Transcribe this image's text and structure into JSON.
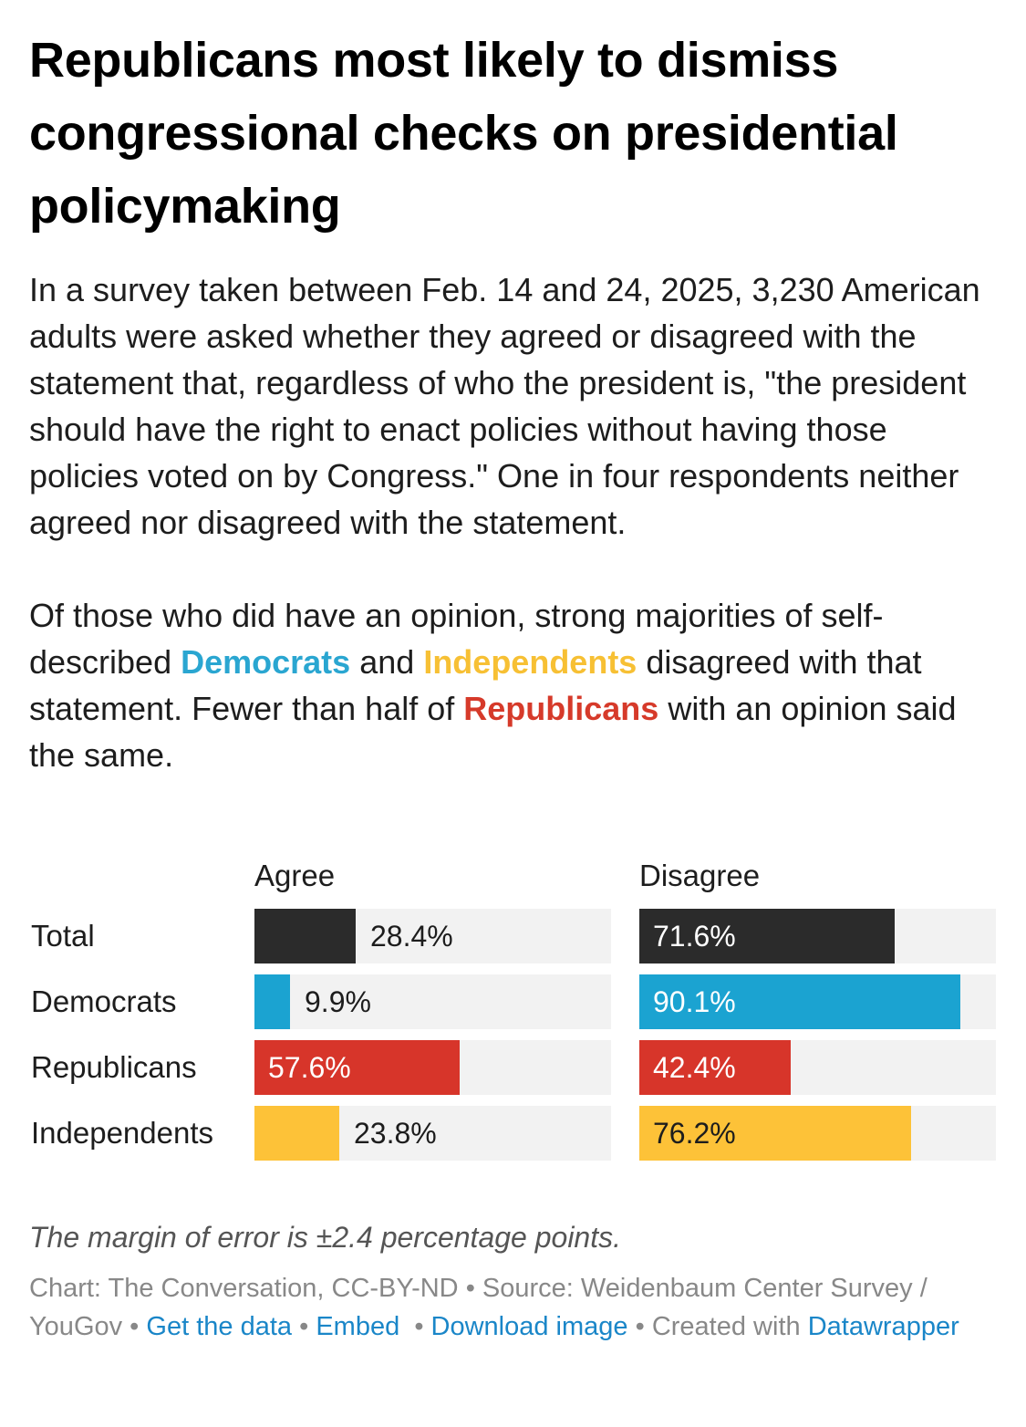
{
  "header": {
    "title": "Republicans most likely to dismiss congressional checks on presidential policymaking"
  },
  "description": {
    "p1": "In a survey taken between Feb. 14 and 24, 2025, 3,230 American adults were asked whether they agreed or disagreed with the statement that, regardless of who the president is, \"the president should have the right to enact policies without having those policies voted on by Congress.\" One in four respondents neither agreed nor disagreed with the statement.",
    "p2_a": "Of those who did have an opinion, strong majorities of self-described",
    "dem": "Democrats",
    "p2_b": "and",
    "ind": "Independents",
    "p2_c": "disagreed with that statement. Fewer than half of",
    "rep": "Republicans",
    "p2_d": "with an opinion said the same."
  },
  "colors": {
    "total": "#2b2b2b",
    "democrats": "#1ba3d1",
    "republicans": "#d7352a",
    "independents": "#fdc238",
    "track": "#f2f2f2"
  },
  "chart_data": {
    "type": "bar",
    "orientation": "horizontal",
    "layout": "split-bars",
    "columns": [
      "Agree",
      "Disagree"
    ],
    "categories": [
      "Total",
      "Democrats",
      "Republicans",
      "Independents"
    ],
    "series": [
      {
        "name": "Agree",
        "values": [
          28.4,
          9.9,
          57.6,
          23.8
        ],
        "labels": [
          "28.4%",
          "9.9%",
          "57.6%",
          "23.8%"
        ]
      },
      {
        "name": "Disagree",
        "values": [
          71.6,
          90.1,
          42.4,
          76.2
        ],
        "labels": [
          "71.6%",
          "90.1%",
          "42.4%",
          "76.2%"
        ]
      }
    ],
    "xlim": [
      0,
      100
    ],
    "unit": "%"
  },
  "notes": {
    "margin": "The margin of error is ±2.4 percentage points."
  },
  "footer": {
    "credit": "Chart: The Conversation, CC-BY-ND",
    "source": "Source: Weidenbaum Center Survey / YouGov",
    "get_data": "Get the data",
    "embed": "Embed",
    "download": "Download image",
    "created": "Created with",
    "datawrapper": "Datawrapper"
  }
}
